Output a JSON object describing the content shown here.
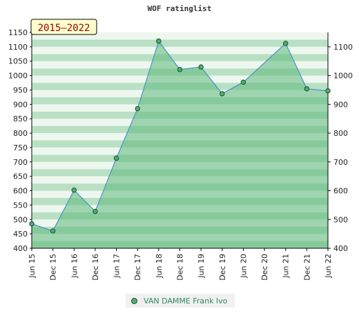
{
  "chart_data": {
    "type": "area",
    "title": "WOF ratinglist",
    "badge": "2015–2022",
    "categories": [
      "Jun 15",
      "Dec 15",
      "Jun 16",
      "Dec 16",
      "Jun 17",
      "Dec 17",
      "Jun 18",
      "Dec 18",
      "Jun 19",
      "Dec 19",
      "Jun 20",
      "Dec 20",
      "Jun 21",
      "Dec 21",
      "Jun 22"
    ],
    "series": [
      {
        "name": "VAN DAMME Frank Ivo",
        "values": [
          485,
          460,
          602,
          528,
          713,
          885,
          1120,
          1021,
          1030,
          937,
          977,
          null,
          1112,
          954,
          947
        ]
      }
    ],
    "y_left": {
      "ylim": [
        400,
        1150
      ],
      "ticks": [
        400,
        450,
        500,
        550,
        600,
        650,
        700,
        750,
        800,
        850,
        900,
        950,
        1000,
        1050,
        1100,
        1150
      ]
    },
    "y_right": {
      "ylim": [
        400,
        1150
      ],
      "ticks": [
        400,
        500,
        600,
        700,
        800,
        900,
        1000,
        1100
      ]
    },
    "colors": {
      "line": "#4a90c8",
      "marker": "#4caf72",
      "fill": "#5cb87a",
      "band_light": "#eef7ef",
      "band_dark": "#b9e0c4"
    },
    "legend_position": "bottom-center",
    "grid": true
  }
}
